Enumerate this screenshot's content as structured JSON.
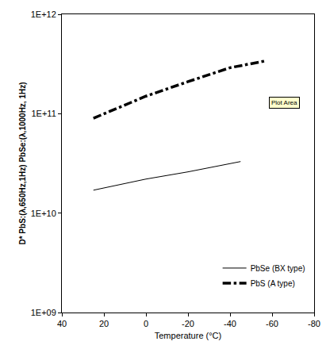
{
  "chart_data": {
    "type": "line",
    "x_label": "Temperature (°C)",
    "y_label": "D* PbS:(λ,650Hz,1Hz) PbSe:(λ,1000Hz, 1Hz)",
    "log": "y",
    "grid": false,
    "legend": "lower right",
    "xlim": [
      40,
      -80
    ],
    "xticks": [
      40,
      20,
      0,
      -20,
      -40,
      -60,
      -80
    ],
    "ylim": [
      1000000000,
      1000000000000
    ],
    "yticks": [
      {
        "value": 1000000000,
        "label": "1E+09"
      },
      {
        "value": 10000000000,
        "label": "1E+10"
      },
      {
        "value": 100000000000,
        "label": "1E+11"
      },
      {
        "value": 1000000000000,
        "label": "1E+12"
      }
    ],
    "series": [
      {
        "name": "PbSe (BX type)",
        "color": "#000000",
        "line_style": "solid",
        "x": [
          25,
          0,
          -20,
          -45
        ],
        "values": [
          17000000000,
          22000000000,
          26000000000,
          33000000000
        ]
      },
      {
        "name": "PbS (A type)",
        "color": "#000000",
        "line_style": "dashdot",
        "x": [
          25,
          0,
          -20,
          -40,
          -57
        ],
        "values": [
          90000000000,
          150000000000,
          210000000000,
          290000000000,
          340000000000
        ]
      }
    ],
    "annotations": [
      {
        "text": "Plot Area",
        "x": -66,
        "y": 130000000000
      }
    ]
  }
}
